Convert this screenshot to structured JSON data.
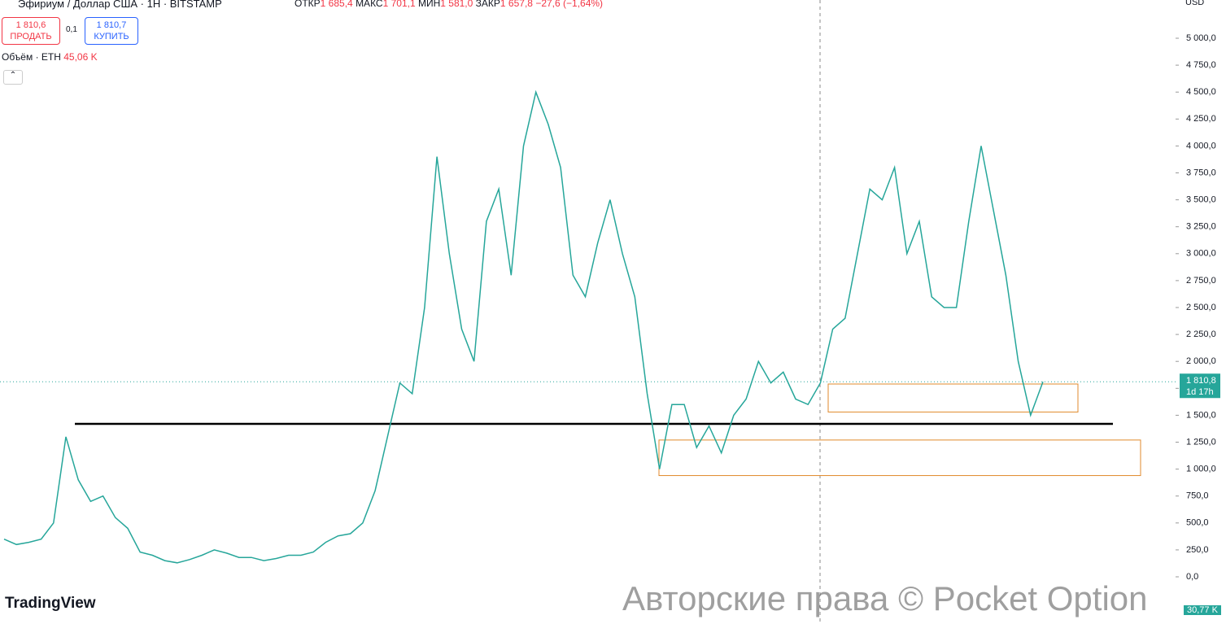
{
  "header": {
    "symbol": "Эфириум / Доллар США · 1H · BITSTAMP",
    "open_label": "ОТКР",
    "open": "1 685,4",
    "high_label": "МАКС",
    "high": "1 701,1",
    "low_label": "МИН",
    "low": "1 581,0",
    "close_label": "ЗАКР",
    "close": "1 657,8",
    "change": "−27,6 (−1,64%)",
    "currency": "USD",
    "sell_price": "1 810,6",
    "sell": "ПРОДАТЬ",
    "spread": "0,1",
    "buy_price": "1 810,7",
    "buy": "КУПИТЬ",
    "volume_label": "Объём · ETH",
    "volume": "45,06 K",
    "volume_tag": "30,77 K",
    "logo": "TradingView",
    "watermark": "Авторские права © Pocket Option"
  },
  "chart_data": {
    "type": "line",
    "color": "#26a69a",
    "values": [
      350,
      300,
      320,
      350,
      500,
      1300,
      900,
      700,
      750,
      550,
      450,
      230,
      200,
      150,
      130,
      160,
      200,
      250,
      220,
      180,
      180,
      150,
      170,
      200,
      200,
      230,
      320,
      380,
      400,
      500,
      800,
      1300,
      1800,
      1700,
      2500,
      3900,
      3000,
      2300,
      2000,
      3300,
      3600,
      2800,
      4000,
      4500,
      4200,
      3800,
      2800,
      2600,
      3100,
      3500,
      3000,
      2600,
      1700,
      1000,
      1600,
      1600,
      1200,
      1400,
      1150,
      1500,
      1650,
      2000,
      1800,
      1900,
      1650,
      1600,
      1800,
      2300,
      2400,
      3000,
      3600,
      3500,
      3800,
      3000,
      3300,
      2600,
      2500,
      2500,
      3300,
      4000,
      3400,
      2800,
      2000,
      1500,
      1810.8
    ],
    "ylim": [
      -438,
      5355
    ],
    "yticks": [
      {
        "value": 0,
        "label": "0,0"
      },
      {
        "value": 250,
        "label": "250,0"
      },
      {
        "value": 500,
        "label": "500,0"
      },
      {
        "value": 750,
        "label": "750,0"
      },
      {
        "value": 1000,
        "label": "1 000,0"
      },
      {
        "value": 1250,
        "label": "1 250,0"
      },
      {
        "value": 1500,
        "label": "1 500,0"
      },
      {
        "value": 1750,
        "label": "1 750,0"
      },
      {
        "value": 2000,
        "label": "2 000,0"
      },
      {
        "value": 2250,
        "label": "2 250,0"
      },
      {
        "value": 2500,
        "label": "2 500,0"
      },
      {
        "value": 2750,
        "label": "2 750,0"
      },
      {
        "value": 3000,
        "label": "3 000,0"
      },
      {
        "value": 3250,
        "label": "3 250,0"
      },
      {
        "value": 3500,
        "label": "3 500,0"
      },
      {
        "value": 3750,
        "label": "3 750,0"
      },
      {
        "value": 4000,
        "label": "4 000,0"
      },
      {
        "value": 4250,
        "label": "4 250,0"
      },
      {
        "value": 4500,
        "label": "4 500,0"
      },
      {
        "value": 4750,
        "label": "4 750,0"
      },
      {
        "value": 5000,
        "label": "5 000,0"
      }
    ],
    "last_price": {
      "value": 1810.8,
      "label": "1 810,8",
      "countdown": "1d 17h"
    },
    "levels": [
      1420
    ],
    "zones": [
      {
        "low": 1530,
        "high": 1790
      },
      {
        "low": 940,
        "high": 1270
      }
    ]
  }
}
